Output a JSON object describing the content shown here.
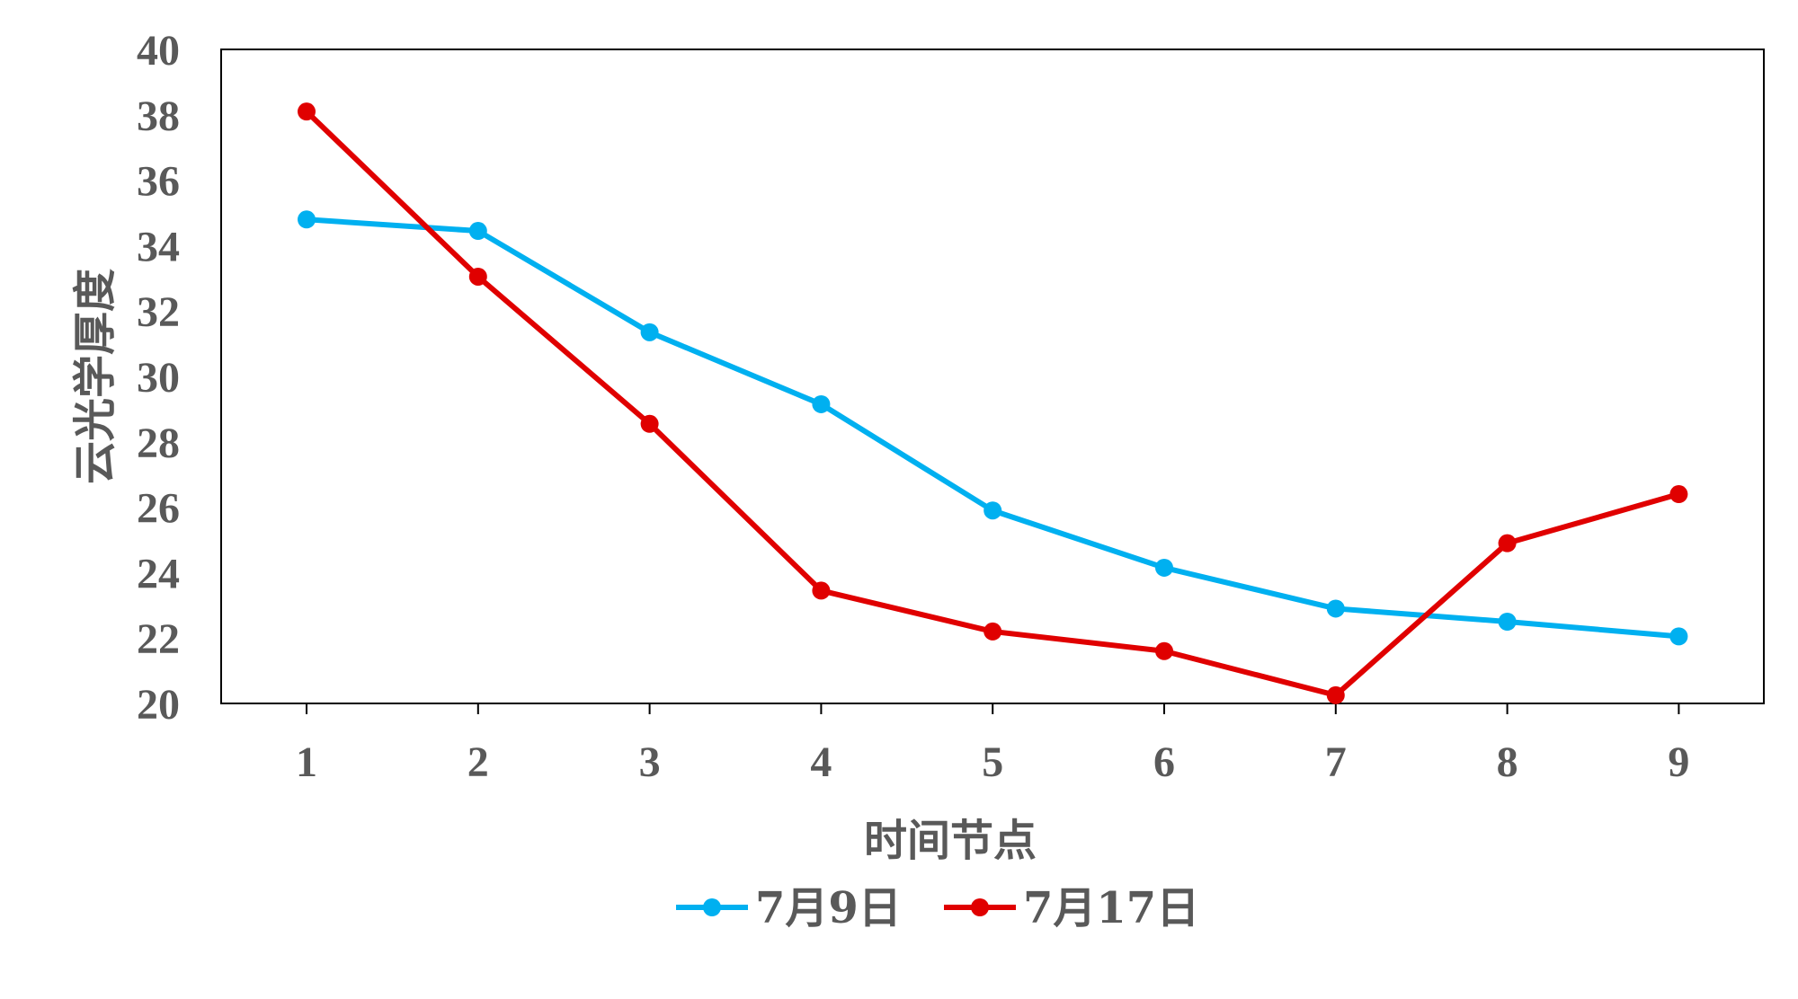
{
  "chart_data": {
    "type": "line",
    "title": "",
    "xlabel": "时间节点",
    "ylabel": "云光学厚度",
    "x": [
      "1",
      "2",
      "3",
      "4",
      "5",
      "6",
      "7",
      "8",
      "9"
    ],
    "ylim": [
      20,
      40
    ],
    "yticks": [
      "20",
      "22",
      "24",
      "26",
      "28",
      "30",
      "32",
      "34",
      "36",
      "38",
      "40"
    ],
    "grid": false,
    "legend_position": "bottom",
    "series": [
      {
        "name": "7月9日",
        "color": "#00b0f0",
        "values": [
          34.8,
          34.45,
          31.35,
          29.15,
          25.9,
          24.15,
          22.9,
          22.5,
          22.05
        ]
      },
      {
        "name": "7月17日",
        "color": "#e00000",
        "values": [
          38.1,
          33.05,
          28.55,
          23.45,
          22.2,
          21.6,
          20.25,
          24.9,
          26.4
        ]
      }
    ]
  }
}
